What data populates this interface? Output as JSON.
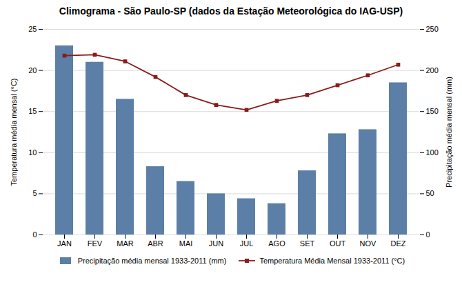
{
  "chart_data": {
    "type": "bar",
    "title": "Climograma - São Paulo-SP (dados da Estação Meteorológica do IAG-USP)",
    "categories": [
      "JAN",
      "FEV",
      "MAR",
      "ABR",
      "MAI",
      "JUN",
      "JUL",
      "AGO",
      "SET",
      "OUT",
      "NOV",
      "DEZ"
    ],
    "series": [
      {
        "name": "Precipitação média mensal 1933-2011 (mm)",
        "type": "bar",
        "axis": "y2",
        "color": "#5B7FA6",
        "values": [
          230,
          210,
          165,
          83,
          65,
          50,
          44,
          38,
          78,
          123,
          128,
          185
        ]
      },
      {
        "name": "Temperatura Média Mensal 1933-2011 (°C)",
        "type": "line",
        "axis": "y",
        "color": "#8B1A1A",
        "marker": "square",
        "values": [
          21.8,
          21.9,
          21.1,
          19.2,
          17.0,
          15.8,
          15.2,
          16.3,
          17.0,
          18.2,
          19.4,
          20.7
        ]
      }
    ],
    "ylabel": "Temperatura média mensal (°C)",
    "y2label": "Precipitação média mensal (mm)",
    "ylim": [
      0,
      25
    ],
    "yticks": [
      0,
      5,
      10,
      15,
      20,
      25
    ],
    "y2lim": [
      0,
      250
    ],
    "y2ticks": [
      0,
      50,
      100,
      150,
      200,
      250
    ],
    "grid": true,
    "legend": "bottom"
  }
}
